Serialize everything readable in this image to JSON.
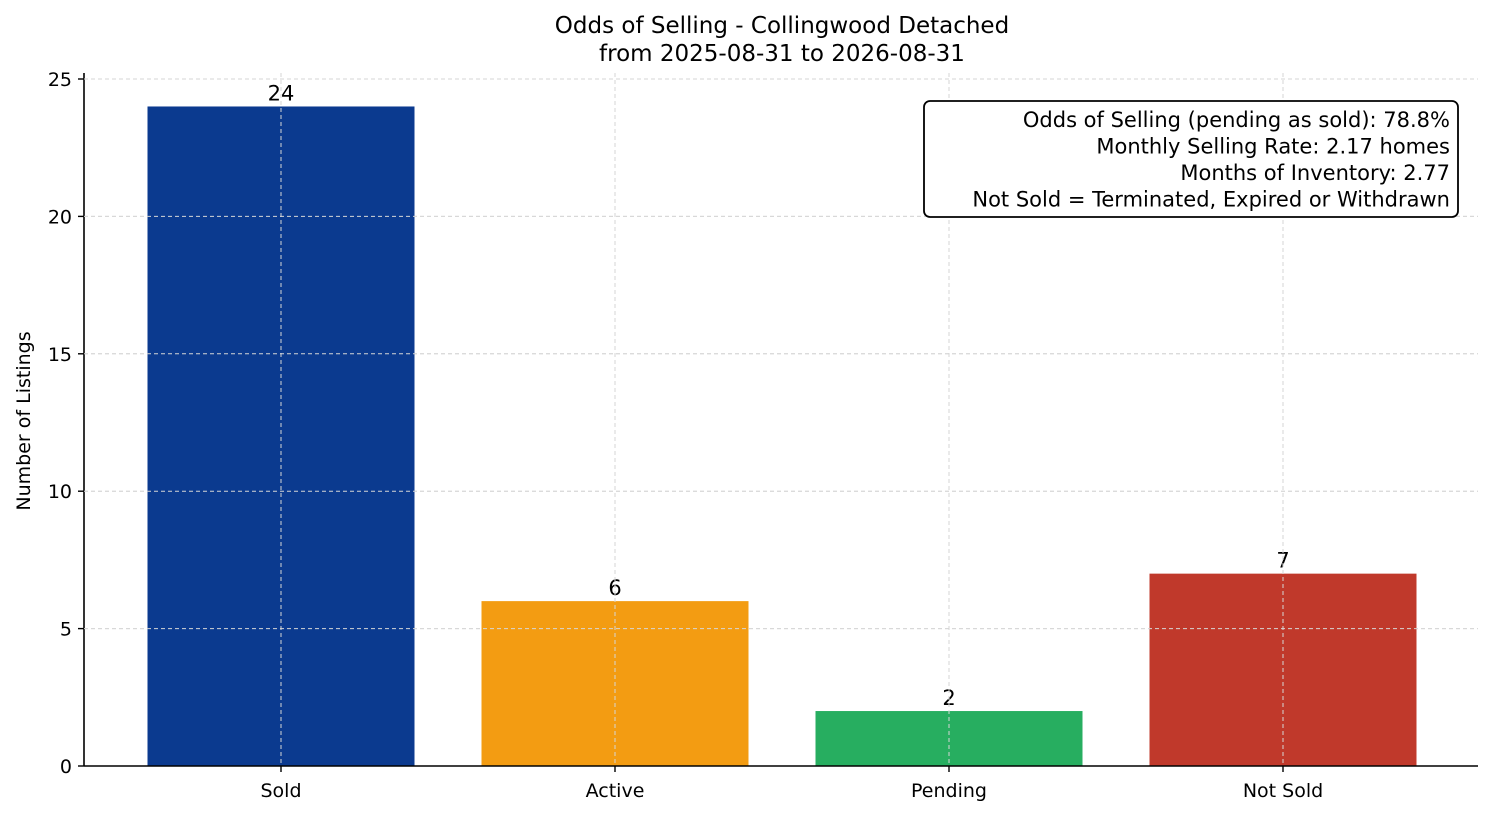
{
  "chart_data": {
    "type": "bar",
    "title": "Odds of Selling - Collingwood Detached",
    "subtitle": "from 2025-08-31 to 2026-08-31",
    "xlabel": "",
    "ylabel": "Number of Listings",
    "categories": [
      "Sold",
      "Active",
      "Pending",
      "Not Sold"
    ],
    "values": [
      24,
      6,
      2,
      7
    ],
    "colors": [
      "#0b3a8f",
      "#f39c12",
      "#27ae60",
      "#c0392b"
    ],
    "ylim": [
      0,
      25
    ],
    "yticks": [
      0,
      5,
      10,
      15,
      20,
      25
    ],
    "grid": true,
    "annotation": {
      "placement": "top-right",
      "lines": [
        "Odds of Selling (pending as sold): 78.8%",
        "Monthly Selling Rate: 2.17 homes",
        "Months of Inventory: 2.77",
        "Not Sold = Terminated, Expired or Withdrawn"
      ]
    }
  }
}
